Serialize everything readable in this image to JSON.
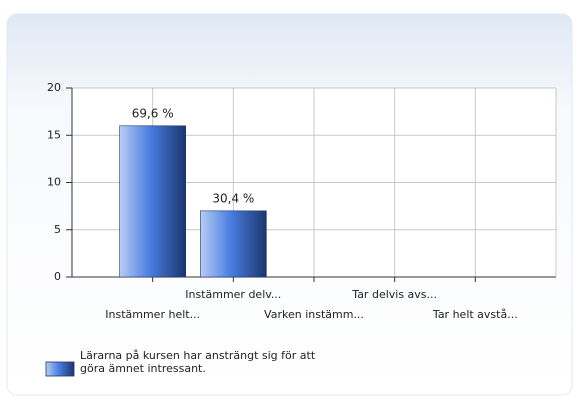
{
  "chart_data": {
    "type": "bar",
    "categories": [
      "Instämmer helt...",
      "Instämmer delv...",
      "Varken instämm...",
      "Tar delvis avs...",
      "Tar helt avstå..."
    ],
    "series": [
      {
        "name": "Lärarna på kursen har ansträngt sig för att göra ämnet intressant.",
        "color": "#4a7fe0",
        "values": [
          16,
          7,
          0,
          0,
          0
        ]
      }
    ],
    "bar_labels": [
      "69,6 %",
      "30,4 %"
    ],
    "ylim": [
      0,
      20
    ],
    "yticks": [
      0,
      5,
      10,
      15,
      20
    ],
    "grid": true
  }
}
